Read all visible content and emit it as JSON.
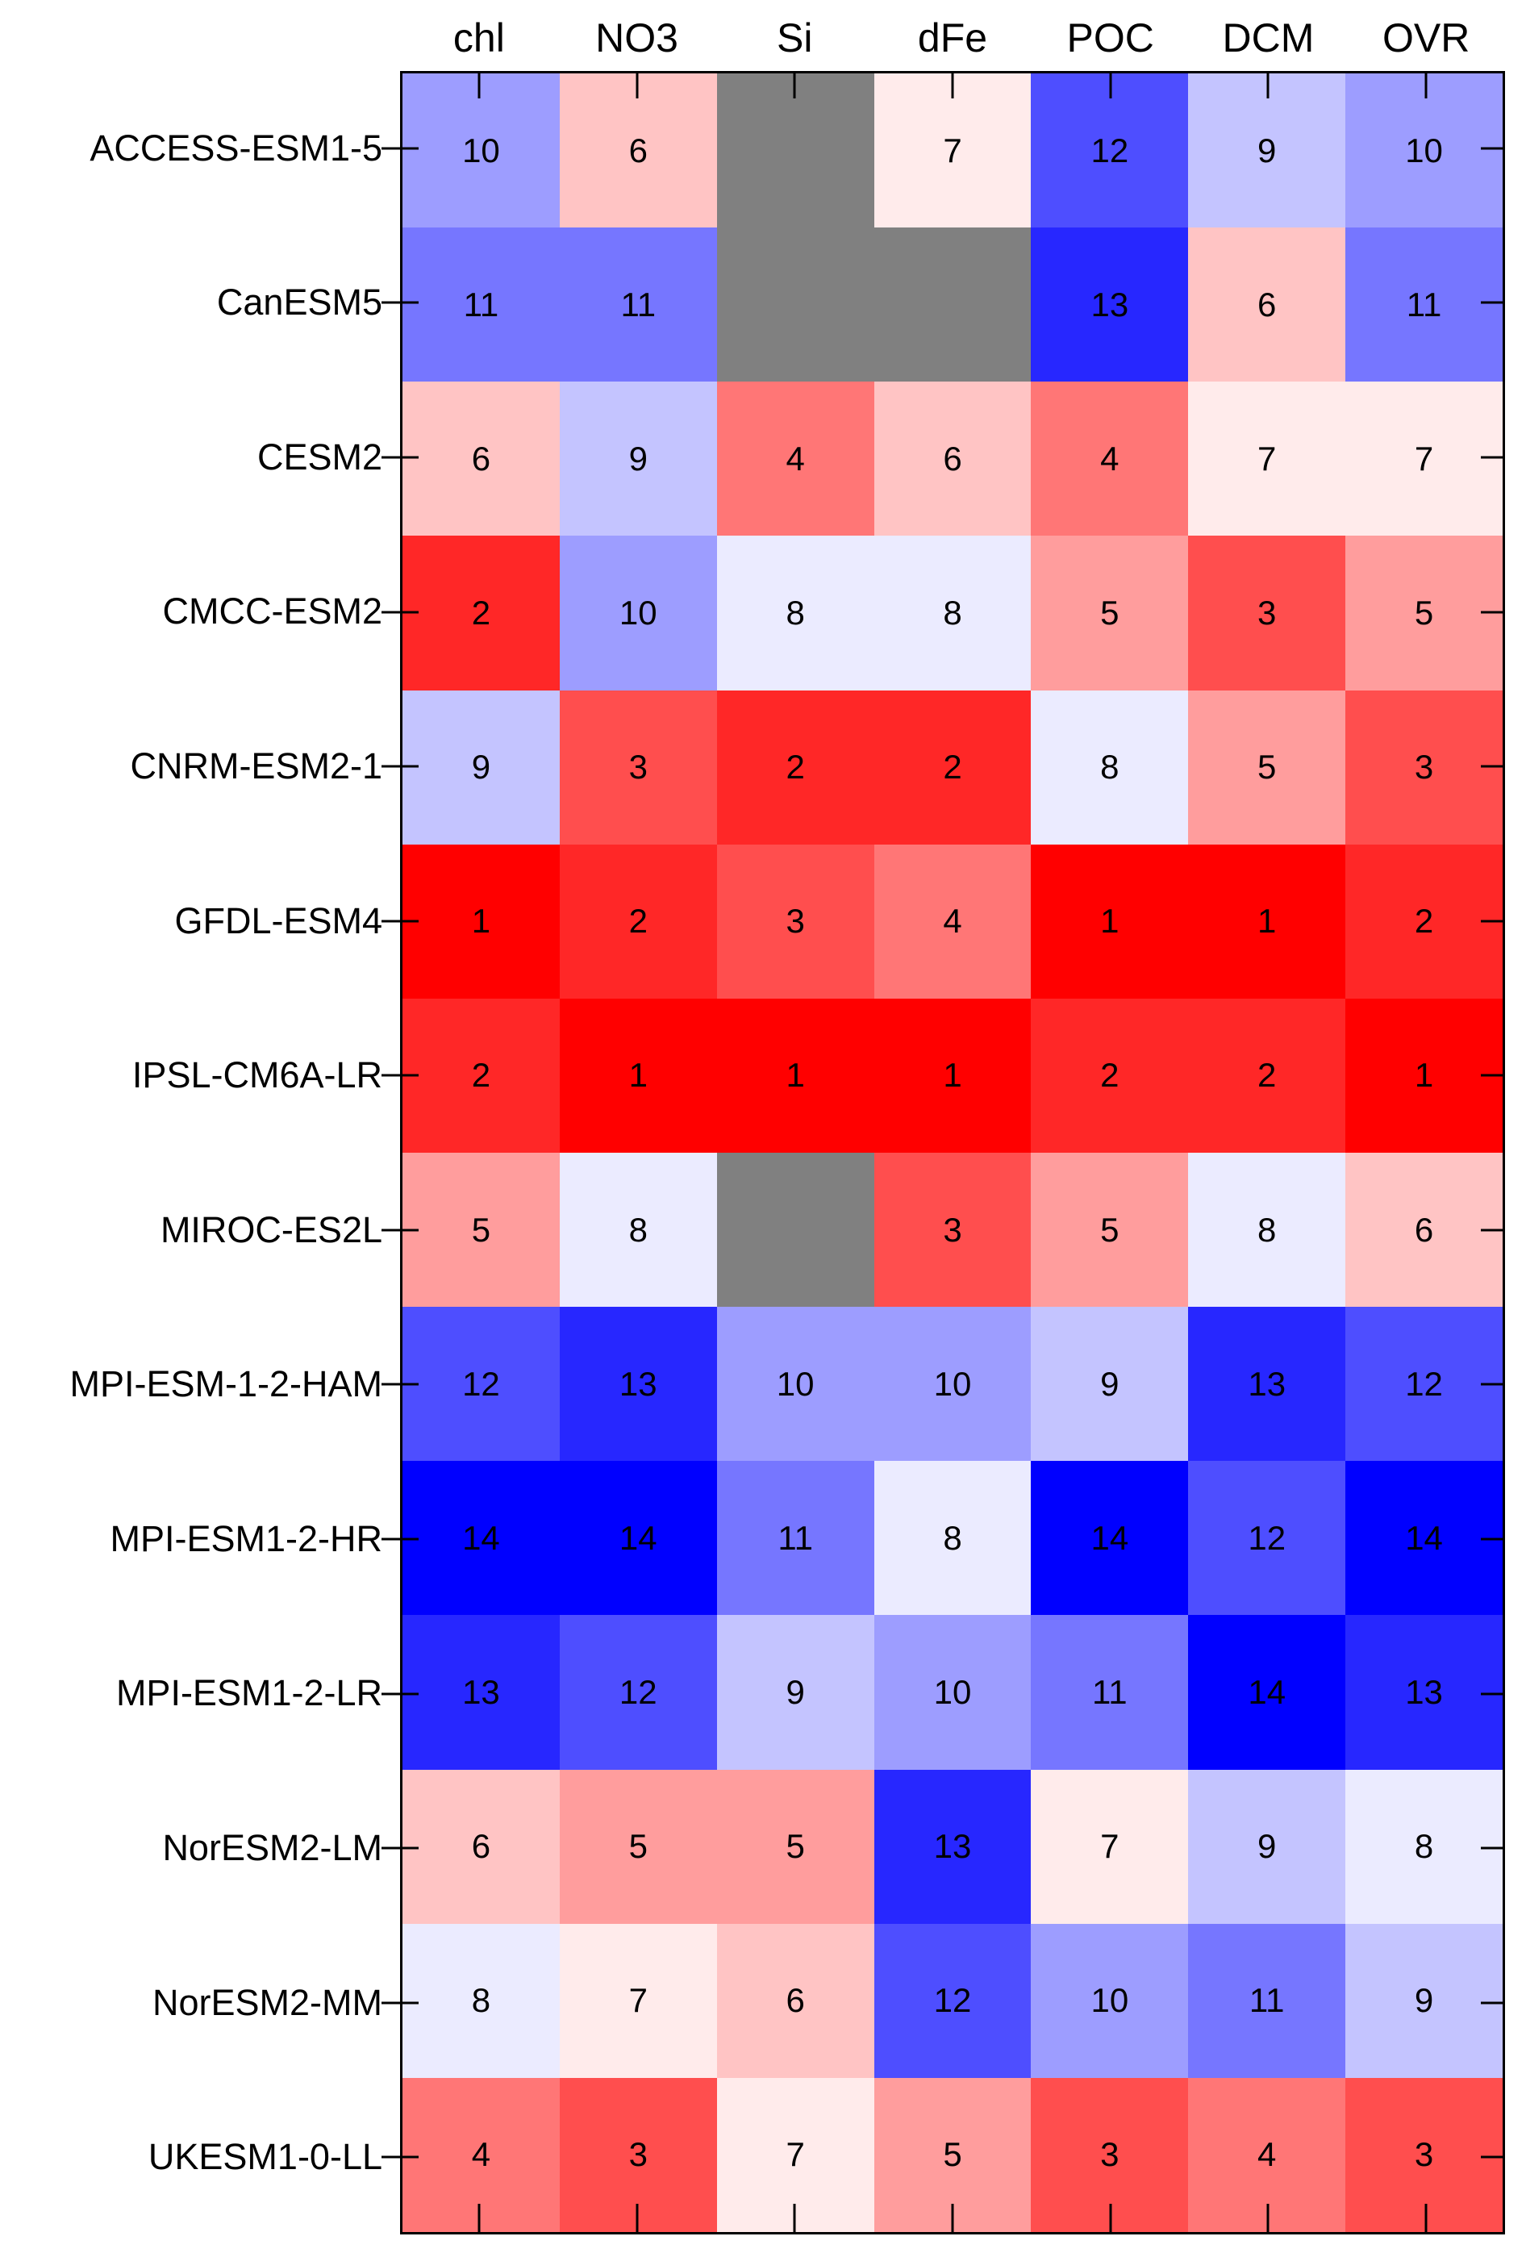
{
  "figure": {
    "background": "#FFFFFF",
    "axis_color": "#000000"
  },
  "chart_data": {
    "type": "heatmap",
    "title": "",
    "xlabel": "",
    "ylabel": "",
    "legend": "none",
    "grid_lines": "none",
    "columns": [
      "chl",
      "NO3",
      "Si",
      "dFe",
      "POC",
      "DCM",
      "OVR"
    ],
    "rows": [
      "ACCESS-ESM1-5",
      "CanESM5",
      "CESM2",
      "CMCC-ESM2",
      "CNRM-ESM2-1",
      "GFDL-ESM4",
      "IPSL-CM6A-LR",
      "MIROC-ES2L",
      "MPI-ESM-1-2-HAM",
      "MPI-ESM1-2-HR",
      "MPI-ESM1-2-LR",
      "NorESM2-LM",
      "NorESM2-MM",
      "UKESM1-0-LL"
    ],
    "values": [
      [
        10,
        6,
        null,
        7,
        12,
        9,
        10
      ],
      [
        11,
        11,
        null,
        null,
        13,
        6,
        11
      ],
      [
        6,
        9,
        4,
        6,
        4,
        7,
        7
      ],
      [
        2,
        10,
        8,
        8,
        5,
        3,
        5
      ],
      [
        9,
        3,
        2,
        2,
        8,
        5,
        3
      ],
      [
        1,
        2,
        3,
        4,
        1,
        1,
        2
      ],
      [
        2,
        1,
        1,
        1,
        2,
        2,
        1
      ],
      [
        5,
        8,
        null,
        3,
        5,
        8,
        6
      ],
      [
        12,
        13,
        10,
        10,
        9,
        13,
        12
      ],
      [
        14,
        14,
        11,
        8,
        14,
        12,
        14
      ],
      [
        13,
        12,
        9,
        10,
        11,
        14,
        13
      ],
      [
        6,
        5,
        5,
        13,
        7,
        9,
        8
      ],
      [
        8,
        7,
        6,
        12,
        10,
        11,
        9
      ],
      [
        4,
        3,
        7,
        5,
        3,
        4,
        3
      ]
    ],
    "value_range": [
      1,
      14
    ],
    "colors": {
      "missing_cell": "#808080",
      "cell_text": "#000000",
      "palette_rank_1_to_14": [
        "#FF0000",
        "#FF2727",
        "#FF4E4E",
        "#FF7676",
        "#FF9D9D",
        "#FFC4C4",
        "#FFEBEB",
        "#EBEBFF",
        "#C4C4FF",
        "#9D9DFF",
        "#7676FF",
        "#4E4EFF",
        "#2727FF",
        "#0000FF"
      ]
    }
  }
}
